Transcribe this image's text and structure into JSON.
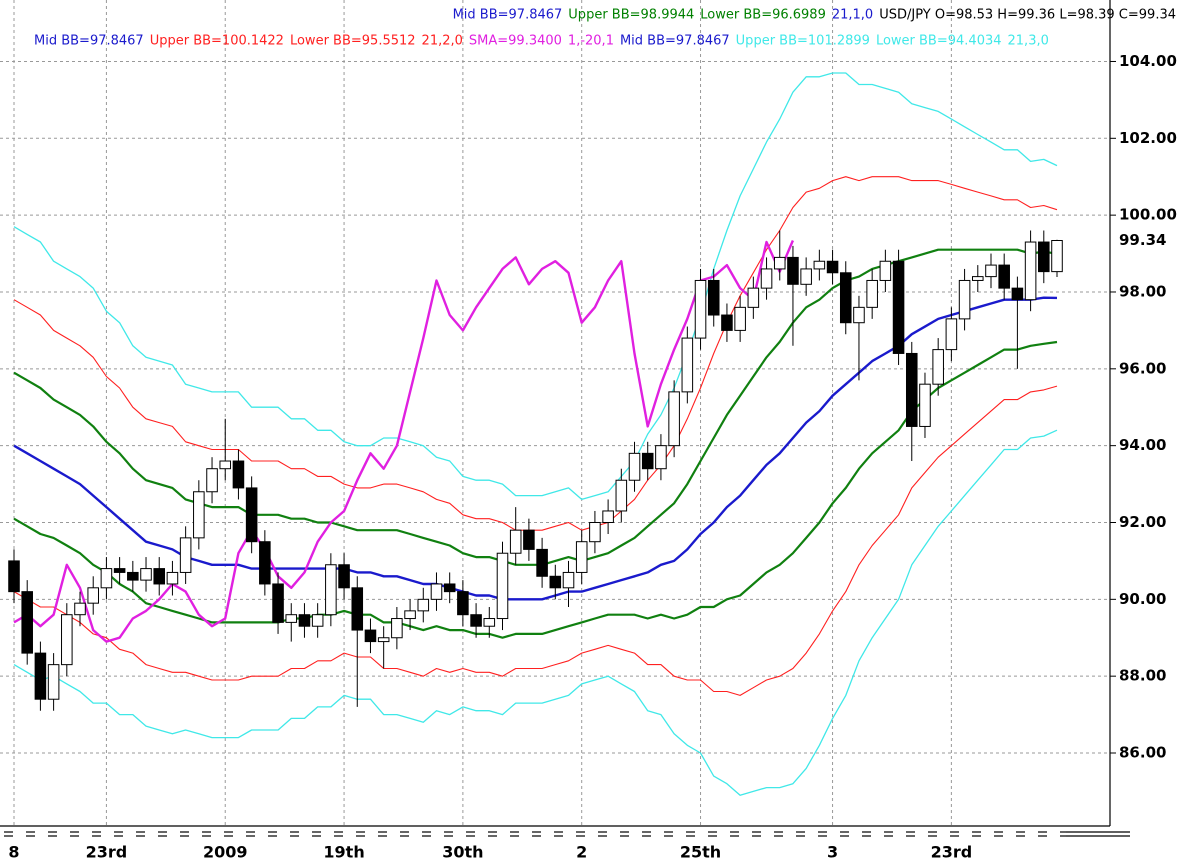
{
  "chart_data": {
    "type": "candlestick",
    "legend": [
      [
        {
          "text": "Mid BB=97.8467",
          "color": "#1a1acc"
        },
        {
          "text": "Upper BB=98.9944",
          "color": "#008000"
        },
        {
          "text": "Lower BB=96.6989",
          "color": "#008000"
        },
        {
          "text": "21,1,0",
          "color": "#1a1acc"
        },
        {
          "text": "USD/JPY O=98.53 H=99.36 L=98.39 C=99.34",
          "color": "#000000"
        }
      ],
      [
        {
          "text": "Mid BB=97.8467",
          "color": "#1a1acc"
        },
        {
          "text": "Upper BB=100.1422",
          "color": "#ff2020"
        },
        {
          "text": "Lower BB=95.5512",
          "color": "#ff2020"
        },
        {
          "text": "21,2,0",
          "color": "#ff2020"
        },
        {
          "text": "SMA=99.3400",
          "color": "#e020e0"
        },
        {
          "text": "1,-20,1",
          "color": "#e020e0"
        },
        {
          "text": "Mid BB=97.8467",
          "color": "#1a1acc"
        },
        {
          "text": "Upper BB=101.2899",
          "color": "#40e8e8"
        },
        {
          "text": "Lower BB=94.4034",
          "color": "#40e8e8"
        },
        {
          "text": "21,3,0",
          "color": "#40e8e8"
        }
      ]
    ],
    "categories": [
      "8",
      null,
      null,
      null,
      null,
      null,
      null,
      "23rd",
      null,
      null,
      null,
      null,
      null,
      null,
      null,
      null,
      "2009",
      null,
      null,
      null,
      null,
      null,
      null,
      null,
      null,
      "19th",
      null,
      null,
      null,
      null,
      null,
      null,
      null,
      null,
      "30th",
      null,
      null,
      null,
      null,
      null,
      null,
      null,
      null,
      "2",
      null,
      null,
      null,
      null,
      null,
      null,
      null,
      null,
      "25th",
      null,
      null,
      null,
      null,
      null,
      null,
      null,
      null,
      null,
      "3",
      null,
      null,
      null,
      null,
      null,
      null,
      null,
      null,
      "23rd",
      null,
      null,
      null,
      null,
      null,
      null,
      null,
      null
    ],
    "open": [
      91.0,
      90.2,
      88.6,
      87.4,
      88.3,
      89.6,
      89.9,
      90.3,
      90.8,
      90.7,
      90.5,
      90.8,
      90.4,
      90.7,
      91.6,
      92.8,
      93.4,
      93.6,
      92.9,
      91.5,
      90.4,
      89.4,
      89.6,
      89.3,
      89.6,
      90.9,
      90.3,
      89.2,
      88.9,
      89.0,
      89.5,
      89.7,
      90.0,
      90.4,
      90.2,
      89.6,
      89.3,
      89.5,
      91.2,
      91.8,
      91.3,
      90.6,
      90.3,
      90.7,
      91.5,
      92.0,
      92.3,
      93.1,
      93.8,
      93.4,
      94.0,
      95.4,
      96.8,
      98.3,
      97.4,
      97.0,
      97.6,
      98.1,
      98.6,
      98.9,
      98.2,
      98.6,
      98.8,
      98.5,
      97.2,
      97.6,
      98.3,
      98.8,
      96.4,
      94.5,
      95.6,
      96.5,
      97.3,
      98.3,
      98.4,
      98.7,
      98.1,
      97.8,
      99.3,
      98.53
    ],
    "high": [
      91.3,
      90.5,
      88.9,
      88.6,
      89.9,
      90.2,
      90.6,
      91.1,
      91.1,
      91.0,
      91.1,
      91.1,
      91.0,
      91.9,
      93.1,
      93.7,
      94.7,
      93.9,
      93.2,
      91.8,
      90.7,
      89.9,
      89.9,
      89.9,
      91.2,
      91.2,
      90.6,
      89.5,
      89.3,
      89.8,
      90.0,
      90.3,
      90.7,
      90.7,
      90.5,
      89.9,
      89.8,
      91.5,
      92.4,
      92.1,
      91.6,
      90.9,
      91.0,
      91.8,
      92.3,
      92.6,
      93.4,
      94.1,
      94.1,
      94.3,
      95.7,
      97.1,
      98.6,
      98.6,
      97.7,
      97.9,
      98.4,
      98.9,
      99.6,
      99.2,
      98.9,
      99.1,
      99.1,
      98.8,
      97.9,
      98.6,
      99.1,
      99.1,
      96.7,
      95.9,
      96.8,
      97.6,
      98.6,
      98.7,
      99.0,
      99.0,
      98.4,
      99.6,
      99.6,
      99.36
    ],
    "low": [
      89.9,
      88.3,
      87.1,
      87.1,
      88.0,
      89.3,
      89.6,
      90.0,
      90.4,
      90.2,
      90.2,
      90.1,
      90.1,
      90.4,
      91.3,
      92.5,
      93.1,
      92.6,
      91.2,
      90.1,
      89.1,
      88.9,
      89.0,
      89.0,
      89.3,
      90.0,
      87.2,
      88.6,
      88.2,
      88.7,
      89.2,
      89.4,
      89.7,
      89.9,
      89.3,
      89.0,
      89.0,
      89.2,
      90.9,
      91.0,
      90.3,
      90.0,
      89.8,
      90.4,
      91.2,
      91.7,
      92.0,
      92.8,
      93.1,
      93.1,
      93.7,
      95.1,
      96.5,
      97.1,
      96.7,
      96.7,
      97.3,
      97.8,
      98.3,
      96.6,
      97.9,
      98.3,
      98.2,
      96.9,
      95.7,
      97.3,
      98.0,
      96.1,
      93.6,
      94.2,
      95.3,
      96.2,
      97.0,
      98.0,
      98.1,
      97.8,
      96.0,
      97.5,
      98.23,
      98.39
    ],
    "close": [
      90.2,
      88.6,
      87.4,
      88.3,
      89.6,
      89.9,
      90.3,
      90.8,
      90.7,
      90.5,
      90.8,
      90.4,
      90.7,
      91.6,
      92.8,
      93.4,
      93.6,
      92.9,
      91.5,
      90.4,
      89.4,
      89.6,
      89.3,
      89.6,
      90.9,
      90.3,
      89.2,
      88.9,
      89.0,
      89.5,
      89.7,
      90.0,
      90.4,
      90.2,
      89.6,
      89.3,
      89.5,
      91.2,
      91.8,
      91.3,
      90.6,
      90.3,
      90.7,
      91.5,
      92.0,
      92.3,
      93.1,
      93.8,
      93.4,
      94.0,
      95.4,
      96.8,
      98.3,
      97.4,
      97.0,
      97.6,
      98.1,
      98.6,
      98.9,
      98.2,
      98.6,
      98.8,
      98.5,
      97.2,
      97.6,
      98.3,
      98.8,
      96.4,
      94.5,
      95.6,
      96.5,
      97.3,
      98.3,
      98.4,
      98.7,
      98.1,
      97.8,
      99.3,
      98.53,
      99.34
    ],
    "series": [
      {
        "color": "#40e8e8",
        "width": 1.3,
        "values": [
          99.7,
          99.5,
          99.3,
          98.8,
          98.6,
          98.4,
          98.1,
          97.5,
          97.2,
          96.6,
          96.3,
          96.2,
          96.1,
          95.6,
          95.5,
          95.4,
          95.4,
          95.4,
          95.0,
          95.0,
          95.0,
          94.7,
          94.7,
          94.4,
          94.4,
          94.1,
          94.0,
          94.0,
          94.2,
          94.2,
          94.1,
          94.0,
          93.7,
          93.6,
          93.2,
          93.1,
          93.1,
          93.0,
          92.7,
          92.7,
          92.7,
          92.8,
          92.9,
          92.6,
          92.7,
          92.8,
          93.2,
          93.6,
          94.3,
          94.8,
          95.5,
          96.4,
          97.4,
          98.6,
          99.6,
          100.5,
          101.2,
          101.9,
          102.5,
          103.2,
          103.6,
          103.6,
          103.7,
          103.7,
          103.4,
          103.4,
          103.3,
          103.2,
          102.9,
          102.8,
          102.7,
          102.5,
          102.3,
          102.1,
          101.9,
          101.7,
          101.7,
          101.4,
          101.45,
          101.2899
        ]
      },
      {
        "color": "#40e8e8",
        "width": 1.3,
        "values": [
          88.3,
          88.1,
          87.9,
          88.0,
          87.8,
          87.6,
          87.3,
          87.3,
          87.0,
          87.0,
          86.7,
          86.6,
          86.5,
          86.6,
          86.5,
          86.4,
          86.4,
          86.4,
          86.6,
          86.6,
          86.6,
          86.9,
          86.9,
          87.2,
          87.2,
          87.5,
          87.4,
          87.4,
          87.0,
          87.0,
          86.9,
          86.8,
          87.1,
          87.0,
          87.2,
          87.1,
          87.1,
          87.0,
          87.3,
          87.3,
          87.3,
          87.4,
          87.5,
          87.8,
          87.9,
          88.0,
          87.8,
          87.6,
          87.1,
          87.0,
          86.5,
          86.2,
          86.0,
          85.4,
          85.2,
          84.9,
          85.0,
          85.1,
          85.1,
          85.2,
          85.6,
          86.2,
          86.9,
          87.5,
          88.4,
          89.0,
          89.5,
          90.0,
          90.9,
          91.4,
          91.9,
          92.3,
          92.7,
          93.1,
          93.5,
          93.9,
          93.9,
          94.2,
          94.25,
          94.4034
        ]
      },
      {
        "color": "#ff2020",
        "width": 1.1,
        "values": [
          97.8,
          97.6,
          97.4,
          97.0,
          96.8,
          96.6,
          96.3,
          95.8,
          95.5,
          95.0,
          94.7,
          94.6,
          94.5,
          94.1,
          94.0,
          93.9,
          93.9,
          93.9,
          93.6,
          93.6,
          93.6,
          93.4,
          93.4,
          93.2,
          93.2,
          93.0,
          92.9,
          92.9,
          93.0,
          93.0,
          92.9,
          92.8,
          92.6,
          92.5,
          92.2,
          92.1,
          92.1,
          92.0,
          91.8,
          91.8,
          91.8,
          91.9,
          92.0,
          91.8,
          91.9,
          92.0,
          92.3,
          92.6,
          93.1,
          93.5,
          94.0,
          94.7,
          95.5,
          96.4,
          97.2,
          97.9,
          98.5,
          99.1,
          99.6,
          100.2,
          100.6,
          100.7,
          100.9,
          101.0,
          100.9,
          101.0,
          101.0,
          101.0,
          100.9,
          100.9,
          100.9,
          100.8,
          100.7,
          100.6,
          100.5,
          100.4,
          100.4,
          100.2,
          100.25,
          100.1422
        ]
      },
      {
        "color": "#ff2020",
        "width": 1.1,
        "values": [
          90.2,
          90.0,
          89.8,
          89.8,
          89.6,
          89.4,
          89.1,
          89.0,
          88.7,
          88.6,
          88.3,
          88.2,
          88.1,
          88.1,
          88.0,
          87.9,
          87.9,
          87.9,
          88.0,
          88.0,
          88.0,
          88.2,
          88.2,
          88.4,
          88.4,
          88.6,
          88.5,
          88.5,
          88.2,
          88.2,
          88.1,
          88.0,
          88.2,
          88.1,
          88.2,
          88.1,
          88.1,
          88.0,
          88.2,
          88.2,
          88.2,
          88.3,
          88.4,
          88.6,
          88.7,
          88.8,
          88.7,
          88.6,
          88.3,
          88.3,
          88.0,
          87.9,
          87.9,
          87.6,
          87.6,
          87.5,
          87.7,
          87.9,
          88.0,
          88.2,
          88.6,
          89.1,
          89.7,
          90.2,
          90.9,
          91.4,
          91.8,
          92.2,
          92.9,
          93.3,
          93.7,
          94.0,
          94.3,
          94.6,
          94.9,
          95.2,
          95.2,
          95.4,
          95.45,
          95.5512
        ]
      },
      {
        "color": "#108010",
        "width": 2.2,
        "values": [
          95.9,
          95.7,
          95.5,
          95.2,
          95.0,
          94.8,
          94.5,
          94.1,
          93.8,
          93.4,
          93.1,
          93.0,
          92.9,
          92.6,
          92.5,
          92.4,
          92.4,
          92.4,
          92.2,
          92.2,
          92.2,
          92.1,
          92.1,
          92.0,
          92.0,
          91.9,
          91.8,
          91.8,
          91.8,
          91.8,
          91.7,
          91.6,
          91.5,
          91.4,
          91.2,
          91.1,
          91.1,
          91.0,
          90.9,
          90.9,
          90.9,
          91.0,
          91.1,
          91.0,
          91.1,
          91.2,
          91.4,
          91.6,
          91.9,
          92.2,
          92.5,
          93.0,
          93.6,
          94.2,
          94.8,
          95.3,
          95.8,
          96.3,
          96.7,
          97.2,
          97.6,
          97.8,
          98.1,
          98.3,
          98.4,
          98.6,
          98.7,
          98.8,
          98.9,
          99.0,
          99.1,
          99.1,
          99.1,
          99.1,
          99.1,
          99.1,
          99.1,
          99.0,
          99.05,
          98.9944
        ]
      },
      {
        "color": "#108010",
        "width": 2.2,
        "values": [
          92.1,
          91.9,
          91.7,
          91.6,
          91.4,
          91.2,
          90.9,
          90.7,
          90.4,
          90.2,
          89.9,
          89.8,
          89.7,
          89.6,
          89.5,
          89.4,
          89.4,
          89.4,
          89.4,
          89.4,
          89.4,
          89.5,
          89.5,
          89.6,
          89.6,
          89.7,
          89.6,
          89.6,
          89.4,
          89.4,
          89.3,
          89.2,
          89.3,
          89.2,
          89.2,
          89.1,
          89.1,
          89.0,
          89.1,
          89.1,
          89.1,
          89.2,
          89.3,
          89.4,
          89.5,
          89.6,
          89.6,
          89.6,
          89.5,
          89.6,
          89.5,
          89.6,
          89.8,
          89.8,
          90.0,
          90.1,
          90.4,
          90.7,
          90.9,
          91.2,
          91.6,
          92.0,
          92.5,
          92.9,
          93.4,
          93.8,
          94.1,
          94.4,
          94.9,
          95.2,
          95.5,
          95.7,
          95.9,
          96.1,
          96.3,
          96.5,
          96.5,
          96.6,
          96.65,
          96.6989
        ]
      },
      {
        "color": "#1a1acc",
        "width": 2.4,
        "values": [
          94.0,
          93.8,
          93.6,
          93.4,
          93.2,
          93.0,
          92.7,
          92.4,
          92.1,
          91.8,
          91.5,
          91.4,
          91.3,
          91.1,
          91.0,
          90.9,
          90.9,
          90.9,
          90.8,
          90.8,
          90.8,
          90.8,
          90.8,
          90.8,
          90.8,
          90.8,
          90.7,
          90.7,
          90.6,
          90.6,
          90.5,
          90.4,
          90.4,
          90.3,
          90.2,
          90.1,
          90.1,
          90.0,
          90.0,
          90.0,
          90.0,
          90.1,
          90.2,
          90.2,
          90.3,
          90.4,
          90.5,
          90.6,
          90.7,
          90.9,
          91.0,
          91.3,
          91.7,
          92.0,
          92.4,
          92.7,
          93.1,
          93.5,
          93.8,
          94.2,
          94.6,
          94.9,
          95.3,
          95.6,
          95.9,
          96.2,
          96.4,
          96.6,
          96.9,
          97.1,
          97.3,
          97.4,
          97.5,
          97.6,
          97.7,
          97.8,
          97.8,
          97.8,
          97.85,
          97.8467
        ]
      },
      {
        "color": "#e020e0",
        "width": 2.4,
        "values": [
          89.4,
          89.6,
          89.3,
          89.6,
          90.9,
          90.3,
          89.2,
          88.9,
          89.0,
          89.5,
          89.7,
          90.0,
          90.4,
          90.2,
          89.6,
          89.3,
          89.5,
          91.2,
          91.8,
          91.3,
          90.6,
          90.3,
          90.7,
          91.5,
          92.0,
          92.3,
          93.1,
          93.8,
          93.4,
          94.0,
          95.4,
          96.8,
          98.3,
          97.4,
          97.0,
          97.6,
          98.1,
          98.6,
          98.9,
          98.2,
          98.6,
          98.8,
          98.5,
          97.2,
          97.6,
          98.3,
          98.8,
          96.4,
          94.5,
          95.6,
          96.5,
          97.3,
          98.3,
          98.4,
          98.7,
          98.1,
          97.8,
          99.3,
          98.53,
          99.34,
          null,
          null,
          null,
          null,
          null,
          null,
          null,
          null,
          null,
          null,
          null,
          null,
          null,
          null,
          null,
          null,
          null,
          null,
          null,
          null
        ]
      }
    ],
    "ylim": [
      84.1,
      105.6
    ],
    "yticks": [
      {
        "value": 86,
        "label": "86.00"
      },
      {
        "value": 88,
        "label": "88.00"
      },
      {
        "value": 90,
        "label": "90.00"
      },
      {
        "value": 92,
        "label": "92.00"
      },
      {
        "value": 94,
        "label": "94.00"
      },
      {
        "value": 96,
        "label": "96.00"
      },
      {
        "value": 98,
        "label": "98.00"
      },
      {
        "value": 100,
        "label": "100.00"
      },
      {
        "value": 102,
        "label": "102.00"
      },
      {
        "value": 104,
        "label": "104.00"
      }
    ],
    "grid": true
  }
}
